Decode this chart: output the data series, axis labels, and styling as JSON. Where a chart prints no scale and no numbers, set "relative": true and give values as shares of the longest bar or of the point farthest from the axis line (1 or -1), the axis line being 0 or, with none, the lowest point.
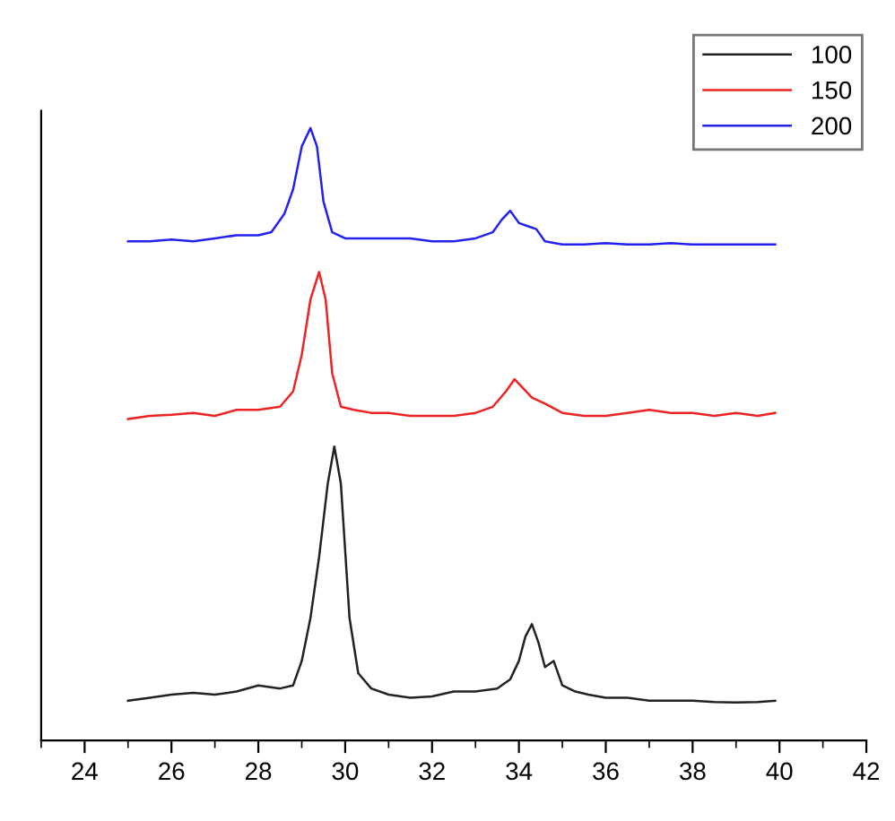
{
  "chart_data": {
    "type": "line",
    "relative": true,
    "xlim": [
      23,
      42
    ],
    "xticks": [
      24,
      26,
      28,
      30,
      32,
      34,
      36,
      38,
      40,
      42
    ],
    "legend": "top right",
    "grid": false,
    "marker": "none",
    "line_style": "solid",
    "series": [
      {
        "name": "100",
        "color": "#222222",
        "x": [
          25,
          25.5,
          26,
          26.5,
          27,
          27.5,
          28,
          28.5,
          28.8,
          29.0,
          29.2,
          29.4,
          29.6,
          29.75,
          29.9,
          30.1,
          30.3,
          30.6,
          31,
          31.5,
          32,
          32.5,
          33,
          33.5,
          33.8,
          34.0,
          34.15,
          34.3,
          34.45,
          34.6,
          34.8,
          35.0,
          35.3,
          35.6,
          36,
          36.5,
          37,
          37.5,
          38,
          38.5,
          39,
          39.5,
          39.9
        ],
        "values": [
          0.065,
          0.07,
          0.075,
          0.078,
          0.075,
          0.08,
          0.09,
          0.085,
          0.09,
          0.13,
          0.2,
          0.3,
          0.42,
          0.48,
          0.42,
          0.2,
          0.11,
          0.085,
          0.075,
          0.07,
          0.072,
          0.08,
          0.08,
          0.085,
          0.1,
          0.13,
          0.17,
          0.19,
          0.16,
          0.12,
          0.13,
          0.09,
          0.08,
          0.075,
          0.07,
          0.07,
          0.065,
          0.065,
          0.065,
          0.063,
          0.062,
          0.063,
          0.065
        ]
      },
      {
        "name": "150",
        "color": "#ee2222",
        "x": [
          25,
          25.5,
          26,
          26.5,
          27,
          27.5,
          28,
          28.5,
          28.8,
          29.0,
          29.2,
          29.4,
          29.55,
          29.7,
          29.9,
          30.2,
          30.6,
          31,
          31.5,
          32,
          32.5,
          33,
          33.4,
          33.7,
          33.9,
          34.1,
          34.3,
          34.6,
          35,
          35.5,
          36,
          36.5,
          37,
          37.5,
          38,
          38.5,
          39,
          39.5,
          39.9
        ],
        "values": [
          0.525,
          0.53,
          0.532,
          0.535,
          0.53,
          0.54,
          0.54,
          0.545,
          0.57,
          0.63,
          0.72,
          0.765,
          0.72,
          0.6,
          0.545,
          0.54,
          0.535,
          0.535,
          0.53,
          0.53,
          0.53,
          0.535,
          0.545,
          0.57,
          0.59,
          0.575,
          0.56,
          0.55,
          0.535,
          0.53,
          0.53,
          0.535,
          0.54,
          0.535,
          0.535,
          0.53,
          0.535,
          0.53,
          0.535
        ]
      },
      {
        "name": "200",
        "color": "#2222ee",
        "x": [
          25,
          25.5,
          26,
          26.5,
          27,
          27.5,
          28,
          28.3,
          28.6,
          28.8,
          29.0,
          29.2,
          29.35,
          29.5,
          29.7,
          30,
          30.5,
          31,
          31.5,
          32,
          32.5,
          33,
          33.4,
          33.6,
          33.8,
          34.0,
          34.2,
          34.4,
          34.6,
          35,
          35.5,
          36,
          36.5,
          37,
          37.5,
          38,
          38.5,
          39,
          39.5,
          39.9
        ],
        "values": [
          0.815,
          0.815,
          0.818,
          0.815,
          0.82,
          0.825,
          0.825,
          0.83,
          0.86,
          0.9,
          0.97,
          1.0,
          0.97,
          0.88,
          0.83,
          0.82,
          0.82,
          0.82,
          0.82,
          0.815,
          0.815,
          0.82,
          0.83,
          0.85,
          0.865,
          0.845,
          0.84,
          0.835,
          0.815,
          0.81,
          0.81,
          0.812,
          0.81,
          0.81,
          0.812,
          0.81,
          0.81,
          0.81,
          0.81,
          0.81
        ]
      }
    ]
  }
}
